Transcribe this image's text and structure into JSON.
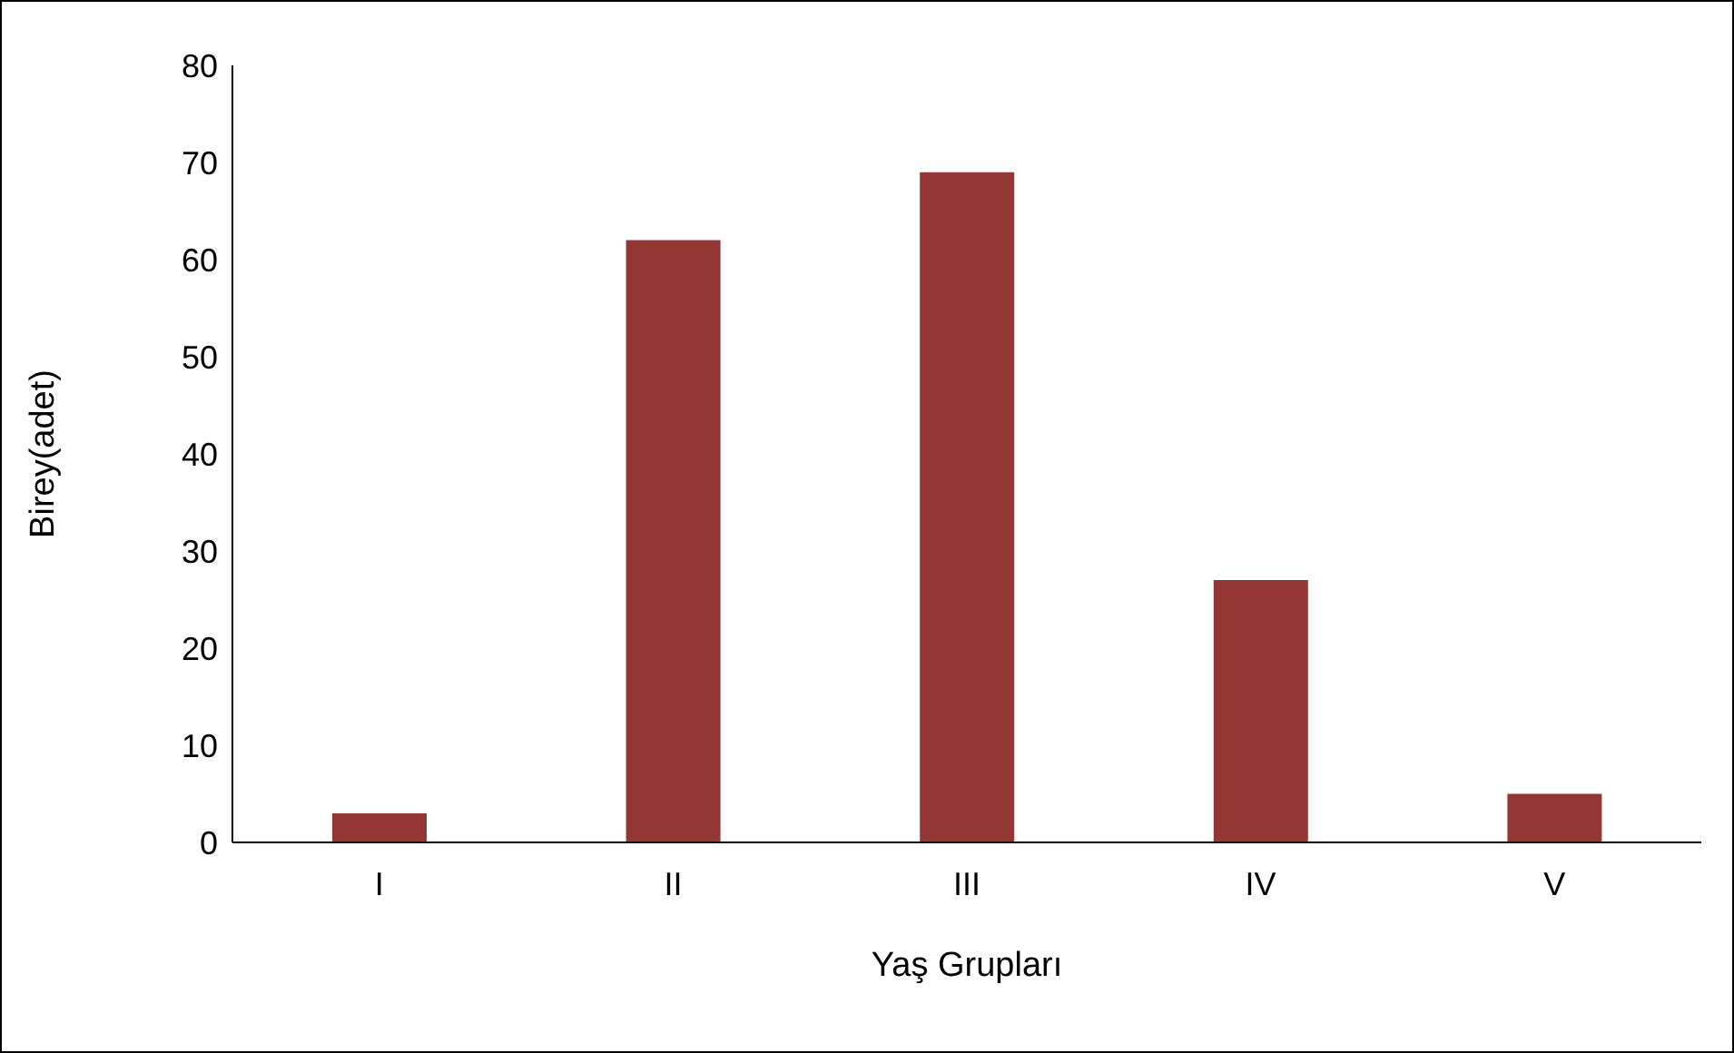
{
  "chart_data": {
    "type": "bar",
    "xlabel": "Yaş Grupları",
    "ylabel": "Birey(adet)",
    "categories": [
      "I",
      "II",
      "III",
      "IV",
      "V"
    ],
    "values": [
      3,
      62,
      69,
      27,
      5
    ],
    "color": "#943634",
    "ylim": [
      0,
      80
    ],
    "yticks": [
      0,
      10,
      20,
      30,
      40,
      50,
      60,
      70,
      80
    ],
    "grid": false,
    "legend": false
  }
}
